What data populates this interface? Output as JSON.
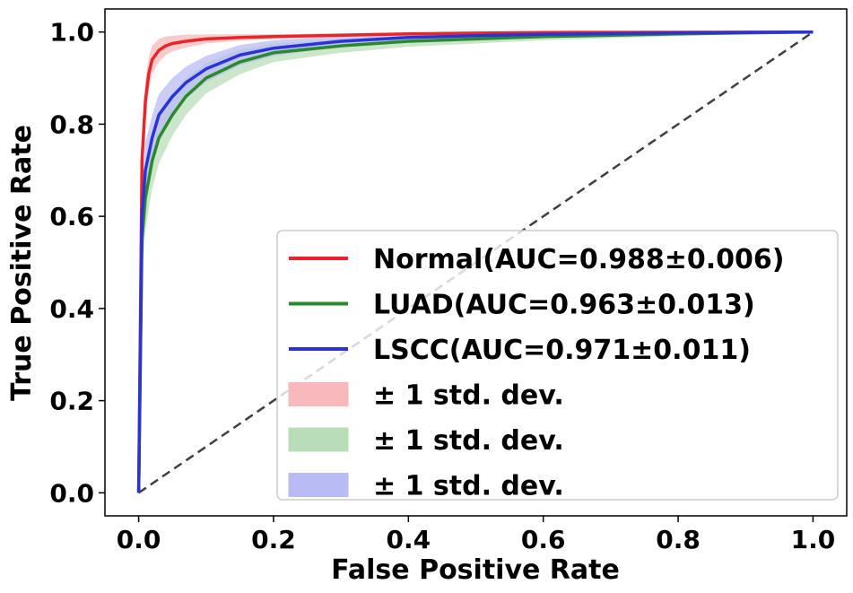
{
  "chart_data": {
    "type": "line",
    "xlabel": "False Positive Rate",
    "ylabel": "True Positive Rate",
    "xlim": [
      -0.05,
      1.05
    ],
    "ylim": [
      -0.05,
      1.05
    ],
    "xticks": [
      "0.0",
      "0.2",
      "0.4",
      "0.6",
      "0.8",
      "1.0"
    ],
    "yticks": [
      "0.0",
      "0.2",
      "0.4",
      "0.6",
      "0.8",
      "1.0"
    ],
    "grid": false,
    "legend_position": "lower-right",
    "series": [
      {
        "name": "Normal(AUC=0.988±0.006)",
        "color": "#e8262a",
        "x": [
          0,
          0.005,
          0.01,
          0.015,
          0.02,
          0.03,
          0.04,
          0.05,
          0.07,
          0.1,
          0.15,
          0.2,
          0.3,
          0.4,
          0.6,
          1.0
        ],
        "y": [
          0,
          0.72,
          0.85,
          0.91,
          0.94,
          0.96,
          0.97,
          0.975,
          0.98,
          0.985,
          0.988,
          0.99,
          0.993,
          0.996,
          0.999,
          1.0
        ],
        "std": [
          0,
          0.06,
          0.045,
          0.035,
          0.03,
          0.025,
          0.02,
          0.017,
          0.014,
          0.01,
          0.007,
          0.005,
          0.004,
          0.003,
          0.002,
          0
        ]
      },
      {
        "name": "LUAD(AUC=0.963±0.013)",
        "color": "#2a8a2a",
        "x": [
          0,
          0.005,
          0.01,
          0.02,
          0.03,
          0.05,
          0.07,
          0.1,
          0.15,
          0.2,
          0.3,
          0.4,
          0.5,
          0.6,
          0.8,
          1.0
        ],
        "y": [
          0,
          0.55,
          0.64,
          0.72,
          0.77,
          0.82,
          0.86,
          0.9,
          0.935,
          0.955,
          0.97,
          0.98,
          0.985,
          0.99,
          0.996,
          1.0
        ],
        "std": [
          0,
          0.07,
          0.07,
          0.06,
          0.055,
          0.045,
          0.04,
          0.033,
          0.027,
          0.02,
          0.015,
          0.012,
          0.01,
          0.008,
          0.005,
          0
        ]
      },
      {
        "name": "LSCC(AUC=0.971±0.011)",
        "color": "#2a34d6",
        "x": [
          0,
          0.005,
          0.01,
          0.02,
          0.03,
          0.05,
          0.07,
          0.1,
          0.15,
          0.2,
          0.3,
          0.4,
          0.5,
          0.6,
          0.8,
          1.0
        ],
        "y": [
          0,
          0.6,
          0.7,
          0.77,
          0.82,
          0.86,
          0.89,
          0.92,
          0.95,
          0.965,
          0.98,
          0.988,
          0.992,
          0.995,
          0.998,
          1.0
        ],
        "std": [
          0,
          0.06,
          0.06,
          0.05,
          0.045,
          0.04,
          0.035,
          0.028,
          0.022,
          0.017,
          0.012,
          0.009,
          0.007,
          0.005,
          0.003,
          0
        ]
      }
    ],
    "band_labels": [
      "± 1 std. dev.",
      "± 1 std. dev.",
      "± 1 std. dev."
    ],
    "band_colors": [
      "#f7b9bb",
      "#b9ddb9",
      "#b9bcf4"
    ],
    "diagonal": {
      "x": [
        0,
        1
      ],
      "y": [
        0,
        1
      ],
      "color": "#404040",
      "style": "dashed"
    }
  }
}
